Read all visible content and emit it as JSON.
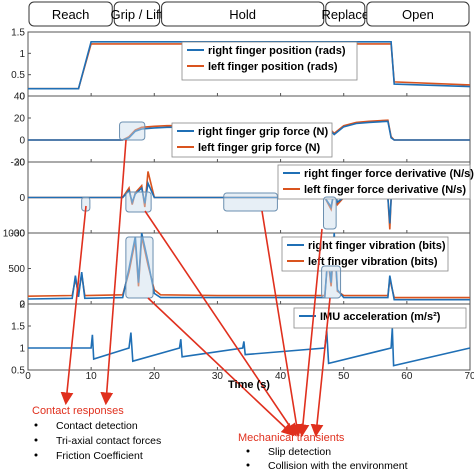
{
  "phases": [
    {
      "label": "Reach",
      "start": 0,
      "end": 13.5
    },
    {
      "label": "Grip / Lift",
      "start": 13.5,
      "end": 21
    },
    {
      "label": "Hold",
      "start": 21,
      "end": 47
    },
    {
      "label": "Replace",
      "start": 47,
      "end": 53.5
    },
    {
      "label": "Open",
      "start": 53.5,
      "end": 70
    }
  ],
  "colors": {
    "right": "#1f6fb5",
    "left": "#d9531e",
    "imu": "#1f6fb5",
    "highlight_fill": "#c9dceb",
    "highlight_stroke": "#6b8fb0",
    "arrow": "#e0301e"
  },
  "chart_data": {
    "type": "line",
    "xlabel": "Time (s)",
    "xlim": [
      0,
      70
    ],
    "xticks": [
      "0",
      "10",
      "20",
      "30",
      "40",
      "50",
      "60",
      "70"
    ],
    "panels": [
      {
        "id": "position",
        "ylim": [
          0,
          1.5
        ],
        "yticks": [
          "0",
          "0.5",
          "1",
          "1.5"
        ],
        "series": [
          {
            "name": "right finger position (rads)",
            "x": [
              0,
              8,
              10,
              57.5,
              58,
              70
            ],
            "y": [
              0.17,
              0.17,
              1.27,
              1.27,
              0.28,
              0.22
            ]
          },
          {
            "name": "left finger position (rads)",
            "x": [
              0,
              8,
              10,
              57.5,
              58,
              70
            ],
            "y": [
              0.17,
              0.17,
              1.22,
              1.22,
              0.33,
              0.26
            ]
          }
        ]
      },
      {
        "id": "force",
        "ylim": [
          -20,
          40
        ],
        "yticks": [
          "-20",
          "0",
          "20",
          "40"
        ],
        "series": [
          {
            "name": "right finger grip force (N)",
            "x": [
              0,
              15,
              16,
              17,
              18,
              20,
              22,
              30,
              40,
              47,
              48,
              48.5,
              50,
              52,
              54,
              57,
              57.5,
              58,
              70
            ],
            "y": [
              0,
              0,
              2,
              8,
              10,
              11,
              11.5,
              12,
              12.5,
              13,
              8,
              5,
              12,
              15,
              16,
              17,
              2,
              0,
              0
            ]
          },
          {
            "name": "left finger grip force (N)",
            "x": [
              0,
              15,
              16,
              17,
              18,
              20,
              22,
              30,
              40,
              47,
              48,
              48.5,
              50,
              52,
              54,
              57,
              57.5,
              58,
              70
            ],
            "y": [
              0,
              0,
              3,
              9,
              11.5,
              12.5,
              13,
              13.5,
              14,
              14,
              9,
              6,
              13,
              16,
              17,
              18,
              3,
              0,
              0
            ]
          }
        ]
      },
      {
        "id": "derivative",
        "ylim": [
          -30,
          30
        ],
        "yticks": [
          "-30",
          "0",
          "30"
        ],
        "series": [
          {
            "name": "right finger force derivative (N/s)",
            "x": [
              0,
              15,
              16,
              16.5,
              17,
              18,
              18.5,
              19,
              20,
              22,
              47,
              48,
              48.5,
              49,
              50,
              57,
              57.3,
              57.6,
              58,
              70
            ],
            "y": [
              0,
              0,
              6,
              -4,
              3,
              8,
              -5,
              12,
              0,
              0,
              0,
              -8,
              6,
              -4,
              0,
              0,
              -22,
              8,
              0,
              0
            ]
          },
          {
            "name": "left finger force derivative (N/s)",
            "x": [
              0,
              15,
              16,
              16.5,
              17,
              18,
              18.5,
              19,
              20,
              22,
              47,
              48,
              48.5,
              49,
              50,
              57,
              57.3,
              57.6,
              58,
              70
            ],
            "y": [
              0,
              0,
              8,
              -6,
              4,
              10,
              -8,
              22,
              0,
              0,
              0,
              -10,
              8,
              -6,
              0,
              0,
              -27,
              10,
              0,
              0
            ]
          }
        ]
      },
      {
        "id": "vibration",
        "ylim": [
          0,
          1000
        ],
        "yticks": [
          "0",
          "500",
          "1000"
        ],
        "series": [
          {
            "name": "right finger vibration (bits)",
            "x": [
              0,
              7,
              7.5,
              8,
              8.5,
              9,
              15,
              16,
              17,
              17.5,
              18,
              19,
              20,
              21,
              30,
              40,
              47,
              47.5,
              48,
              48.5,
              49,
              50,
              57,
              57.3,
              58,
              70
            ],
            "y": [
              70,
              80,
              400,
              100,
              450,
              80,
              90,
              500,
              950,
              300,
              1000,
              600,
              150,
              90,
              90,
              90,
              90,
              700,
              300,
              1000,
              200,
              90,
              90,
              400,
              60,
              60
            ]
          },
          {
            "name": "left finger vibration (bits)",
            "x": [
              0,
              7,
              7.5,
              8,
              8.5,
              9,
              15,
              16,
              17,
              17.5,
              18,
              19,
              20,
              21,
              30,
              40,
              47,
              47.5,
              48,
              48.5,
              49,
              50,
              57,
              57.3,
              58,
              70
            ],
            "y": [
              110,
              120,
              350,
              150,
              420,
              120,
              130,
              450,
              900,
              250,
              950,
              550,
              200,
              130,
              120,
              120,
              120,
              650,
              250,
              900,
              180,
              120,
              120,
              350,
              90,
              90
            ]
          }
        ]
      },
      {
        "id": "imu",
        "ylim": [
          0.5,
          2
        ],
        "yticks": [
          "0.5",
          "1",
          "1.5",
          "2"
        ],
        "series": [
          {
            "name": "IMU acceleration (m/s²)",
            "x": [
              0,
              10,
              10.2,
              10.4,
              16,
              16.3,
              16.6,
              24,
              24.2,
              24.4,
              34,
              34.2,
              34.4,
              47,
              47.3,
              47.6,
              57.5,
              57.7,
              57.9,
              70
            ],
            "y": [
              1,
              1,
              1.3,
              0.75,
              1,
              1.35,
              0.7,
              1,
              1.2,
              0.8,
              1,
              1.15,
              0.85,
              1,
              1.4,
              0.65,
              1,
              1.45,
              0.6,
              1
            ]
          }
        ]
      }
    ]
  },
  "annotations": {
    "contact": {
      "heading": "Contact responses",
      "items": [
        "Contact detection",
        "Tri-axial contact forces",
        "Friction Coefficient"
      ]
    },
    "mechanical": {
      "heading": "Mechanical transients",
      "items": [
        "Slip detection",
        "Collision with the environment"
      ]
    }
  }
}
